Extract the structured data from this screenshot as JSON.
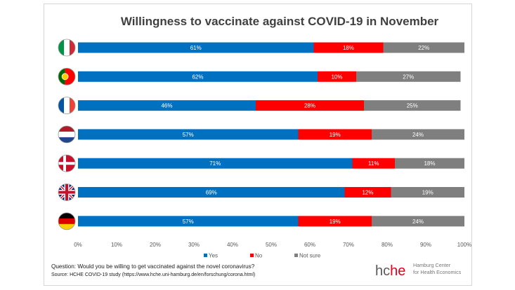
{
  "chart_data": {
    "type": "bar",
    "orientation": "horizontal",
    "stacked": true,
    "title": "Willingness to vaccinate against COVID-19 in November",
    "categories": [
      "Italy",
      "Portugal",
      "France",
      "Netherlands",
      "Denmark",
      "United Kingdom",
      "Germany"
    ],
    "category_icons": [
      "italy-flag-icon",
      "portugal-flag-icon",
      "france-flag-icon",
      "netherlands-flag-icon",
      "denmark-flag-icon",
      "uk-flag-icon",
      "germany-flag-icon"
    ],
    "series": [
      {
        "name": "Yes",
        "color": "#0070c0",
        "values": [
          61,
          62,
          46,
          57,
          71,
          69,
          57
        ],
        "labels": [
          "61%",
          "62%",
          "46%",
          "57%",
          "71%",
          "69%",
          "57%"
        ]
      },
      {
        "name": "No",
        "color": "#ff0000",
        "values": [
          18,
          10,
          28,
          19,
          11,
          12,
          19
        ],
        "labels": [
          "18%",
          "10%",
          "28%",
          "19%",
          "11%",
          "12%",
          "19%"
        ]
      },
      {
        "name": "Not sure",
        "color": "#7f7f7f",
        "values": [
          22,
          27,
          25,
          24,
          18,
          19,
          24
        ],
        "labels": [
          "22%",
          "27%",
          "25%",
          "24%",
          "18%",
          "19%",
          "24%"
        ]
      }
    ],
    "xlim": [
      0,
      100
    ],
    "x_ticks": [
      0,
      10,
      20,
      30,
      40,
      50,
      60,
      70,
      80,
      90,
      100
    ],
    "x_tick_labels": [
      "0%",
      "10%",
      "20%",
      "30%",
      "40%",
      "50%",
      "60%",
      "70%",
      "80%",
      "90%",
      "100%"
    ],
    "grid": false,
    "legend_position": "bottom"
  },
  "footer": {
    "question": "Question: Would you be willing to get vaccinated against the novel coronavirus?",
    "source": "Source: HCHE COVID-19 study (https://www.hche.uni-hamburg.de/en/forschung/corona.html)"
  },
  "logo": {
    "text": "hche",
    "sub_line1": "Hamburg Center",
    "sub_line2": "for Health Economics",
    "accent_color": "#e2001a"
  }
}
